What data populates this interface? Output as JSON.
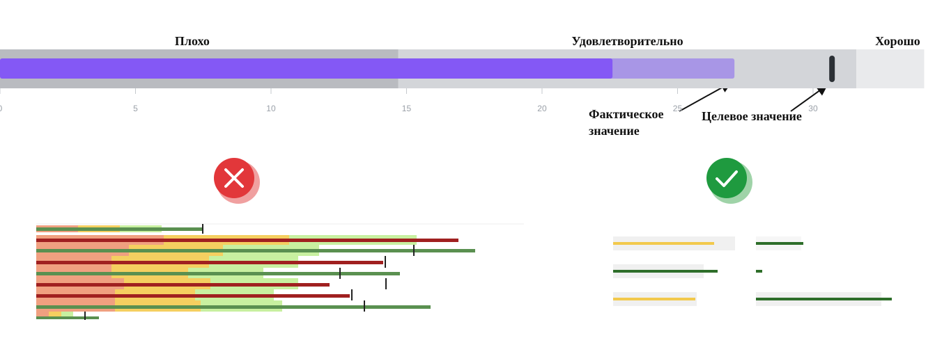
{
  "chart_data": {
    "type": "bullet",
    "ranges": [
      {
        "name": "Плохо",
        "end": 14.7,
        "color": "#b9bbc0"
      },
      {
        "name": "Удовлетворительно",
        "end": 31.6,
        "color": "#d3d5d9"
      },
      {
        "name": "Хорошо",
        "end": 34.1,
        "color": "#e9eaec"
      }
    ],
    "series": [
      {
        "color": "#a896e6",
        "values": [
          27.1
        ]
      },
      {
        "color": "#8458f5",
        "values": [
          22.6
        ]
      }
    ],
    "target": 30.7,
    "target_color": "#2b3035",
    "xlim": [
      0,
      34.5
    ],
    "xticks": [
      0,
      5,
      10,
      15,
      20,
      25,
      30
    ],
    "annotations": {
      "actual": "Фактическое значение",
      "target": "Целевое значение"
    }
  }
}
